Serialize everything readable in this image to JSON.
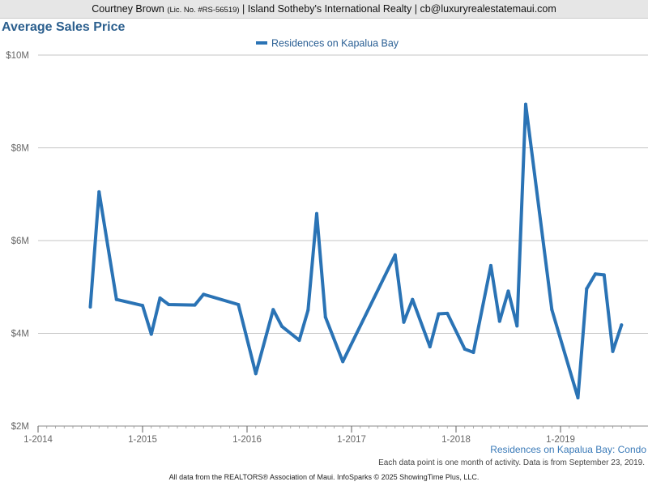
{
  "header": {
    "agent": "Courtney Brown",
    "license": "(Lic. No. #RS-56519)",
    "rest": "| Island Sotheby's International Realty | cb@luxuryrealestatemaui.com"
  },
  "title": "Average Sales Price",
  "chart_data": {
    "type": "line",
    "legend": {
      "position": "top-center"
    },
    "series": [
      {
        "name": "Residences on Kapalua Bay",
        "color": "#2a73b5",
        "points": [
          {
            "x": "2014-07",
            "y": 4.57
          },
          {
            "x": "2014-08",
            "y": 7.05
          },
          {
            "x": "2014-10",
            "y": 4.73
          },
          {
            "x": "2015-01",
            "y": 4.6
          },
          {
            "x": "2015-02",
            "y": 3.98
          },
          {
            "x": "2015-03",
            "y": 4.76
          },
          {
            "x": "2015-04",
            "y": 4.62
          },
          {
            "x": "2015-07",
            "y": 4.61
          },
          {
            "x": "2015-08",
            "y": 4.84
          },
          {
            "x": "2015-12",
            "y": 4.62
          },
          {
            "x": "2016-02",
            "y": 3.13
          },
          {
            "x": "2016-04",
            "y": 4.51
          },
          {
            "x": "2016-05",
            "y": 4.15
          },
          {
            "x": "2016-07",
            "y": 3.85
          },
          {
            "x": "2016-08",
            "y": 4.5
          },
          {
            "x": "2016-09",
            "y": 6.58
          },
          {
            "x": "2016-10",
            "y": 4.35
          },
          {
            "x": "2016-12",
            "y": 3.39
          },
          {
            "x": "2017-06",
            "y": 5.69
          },
          {
            "x": "2017-07",
            "y": 4.24
          },
          {
            "x": "2017-08",
            "y": 4.73
          },
          {
            "x": "2017-10",
            "y": 3.71
          },
          {
            "x": "2017-11",
            "y": 4.42
          },
          {
            "x": "2017-12",
            "y": 4.43
          },
          {
            "x": "2018-02",
            "y": 3.66
          },
          {
            "x": "2018-03",
            "y": 3.59
          },
          {
            "x": "2018-05",
            "y": 5.46
          },
          {
            "x": "2018-06",
            "y": 4.26
          },
          {
            "x": "2018-07",
            "y": 4.91
          },
          {
            "x": "2018-08",
            "y": 4.16
          },
          {
            "x": "2018-09",
            "y": 8.94
          },
          {
            "x": "2018-12",
            "y": 4.51
          },
          {
            "x": "2019-03",
            "y": 2.61
          },
          {
            "x": "2019-04",
            "y": 4.96
          },
          {
            "x": "2019-05",
            "y": 5.28
          },
          {
            "x": "2019-06",
            "y": 5.26
          },
          {
            "x": "2019-07",
            "y": 3.61
          },
          {
            "x": "2019-08",
            "y": 4.18
          }
        ]
      }
    ],
    "y_axis": {
      "min": 2,
      "max": 10,
      "ticks": [
        {
          "value": 2,
          "label": "$2M"
        },
        {
          "value": 4,
          "label": "$4M"
        },
        {
          "value": 6,
          "label": "$6M"
        },
        {
          "value": 8,
          "label": "$8M"
        },
        {
          "value": 10,
          "label": "$10M"
        }
      ],
      "grid": true
    },
    "x_axis": {
      "min": "2014-01",
      "max": "2019-09",
      "ticks": [
        {
          "value": "2014-01",
          "label": "1-2014"
        },
        {
          "value": "2015-01",
          "label": "1-2015"
        },
        {
          "value": "2016-01",
          "label": "1-2016"
        },
        {
          "value": "2017-01",
          "label": "1-2017"
        },
        {
          "value": "2018-01",
          "label": "1-2018"
        },
        {
          "value": "2019-01",
          "label": "1-2019"
        }
      ]
    }
  },
  "caption": "Residences on Kapalua Bay: Condo",
  "note": "Each data point is one month of activity. Data is from September 23, 2019.",
  "footer": "All data from the REALTORS® Association of Maui. InfoSparks © 2025 ShowingTime Plus, LLC."
}
